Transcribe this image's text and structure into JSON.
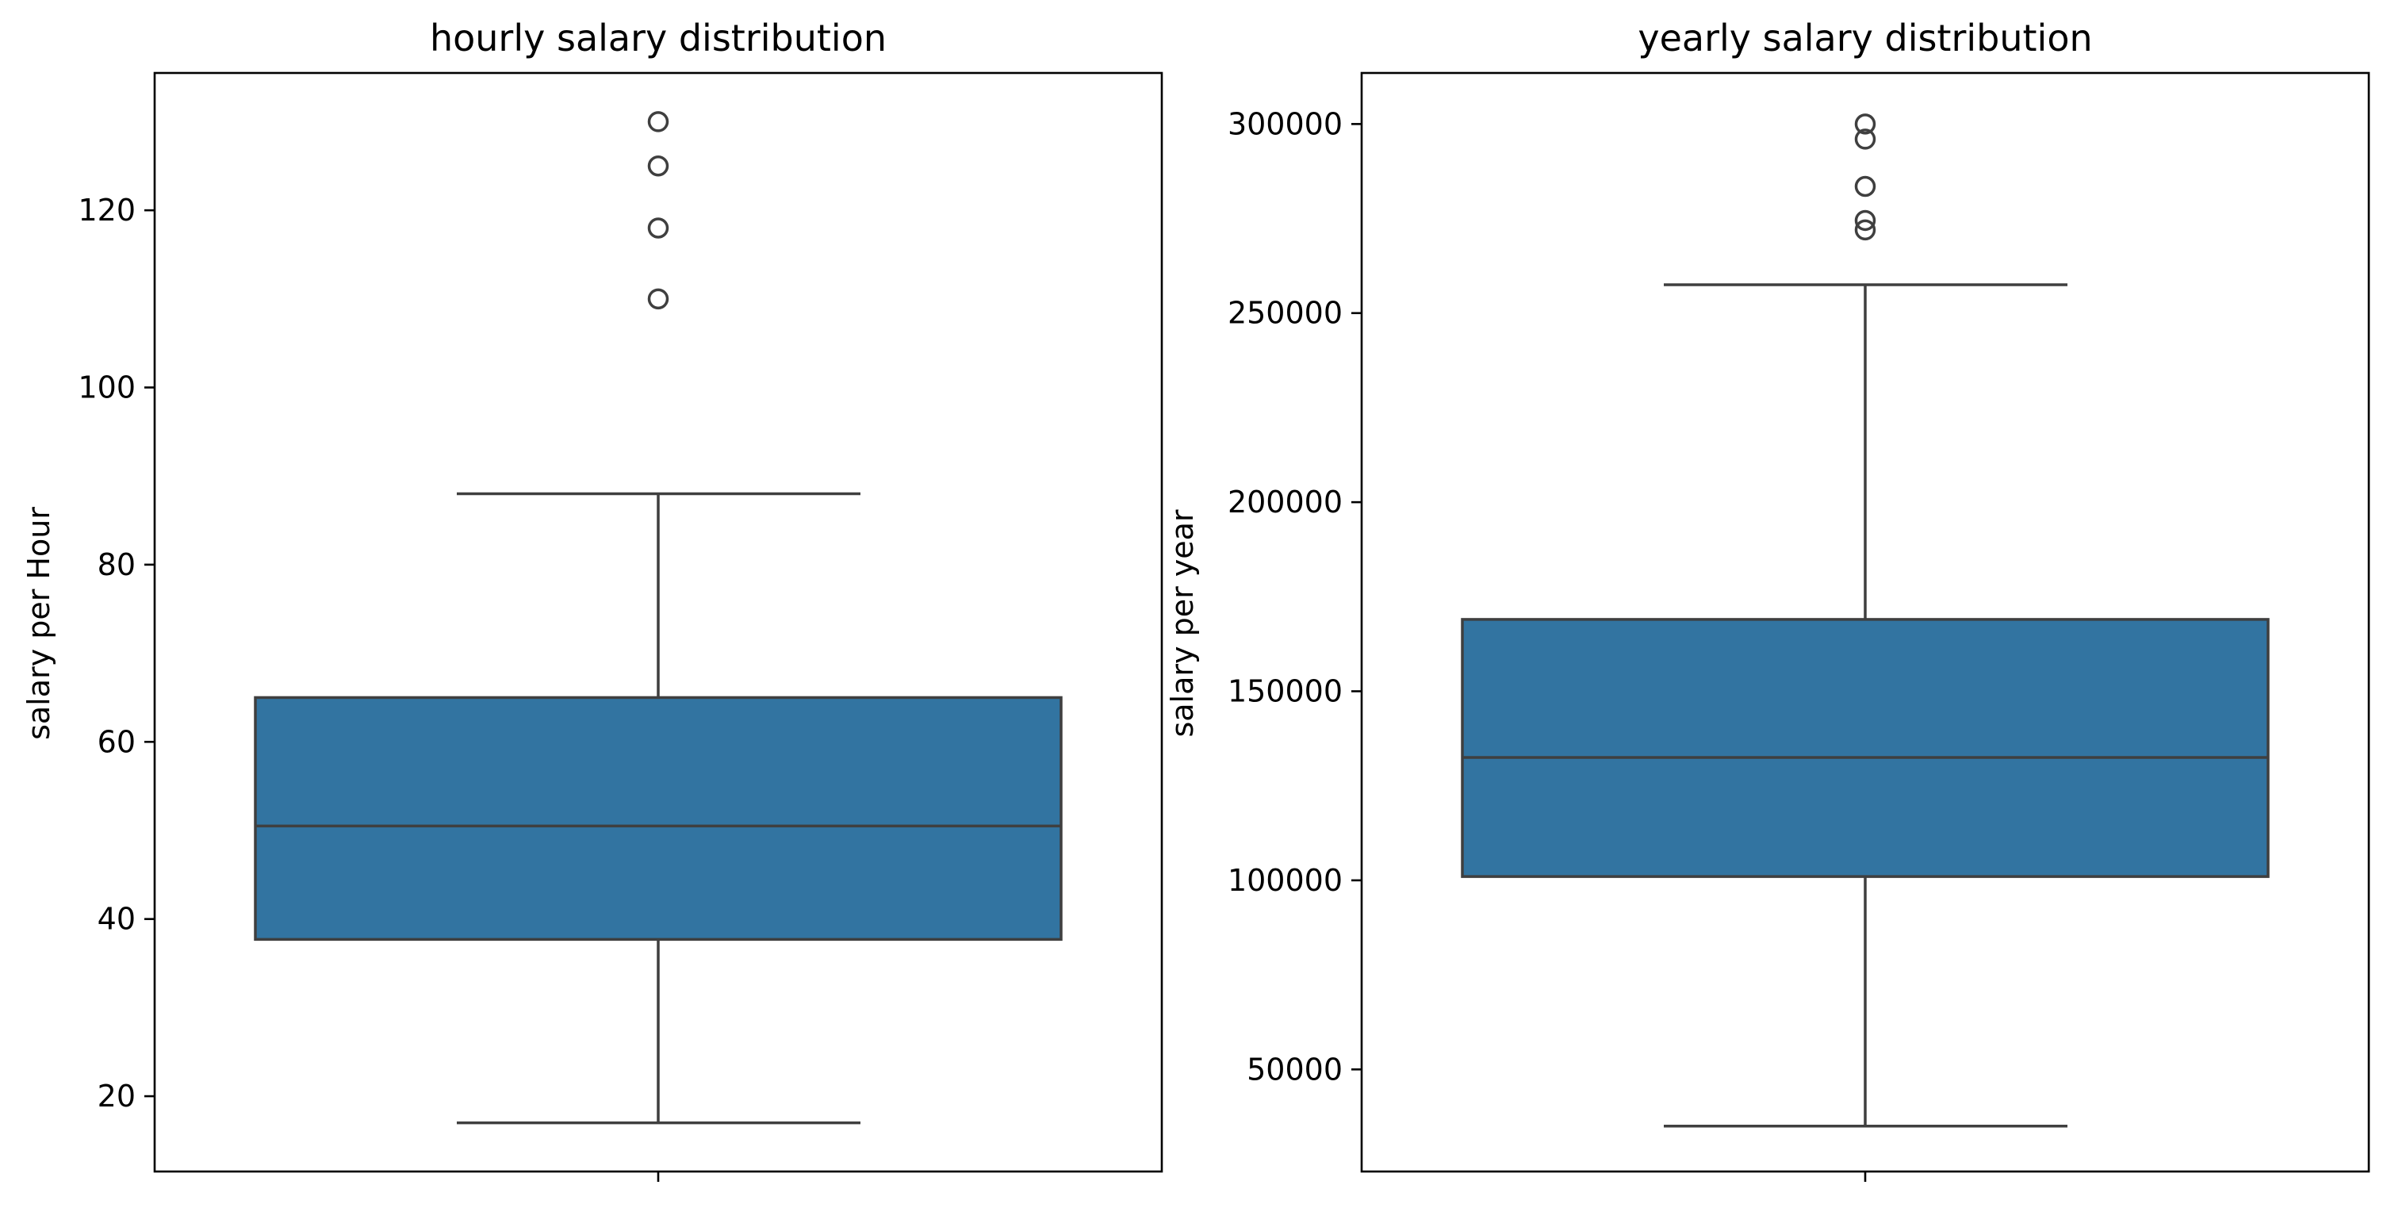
{
  "chart_data": [
    {
      "type": "box",
      "title": "hourly salary distribution",
      "xlabel": "",
      "ylabel": "salary per Hour",
      "ylim": [
        11.5,
        135.5
      ],
      "yticks": [
        20,
        40,
        60,
        80,
        100,
        120
      ],
      "box": {
        "whisker_low": 17,
        "q1": 37.7,
        "median": 50.5,
        "q3": 65,
        "whisker_high": 88,
        "outliers": [
          110,
          118,
          125,
          130
        ]
      },
      "colors": {
        "box_fill": "#3274a1",
        "line": "#3f3f3f"
      },
      "grid": false
    },
    {
      "type": "box",
      "title": "yearly salary distribution",
      "xlabel": "",
      "ylabel": "salary per year",
      "ylim": [
        23000,
        313500
      ],
      "yticks": [
        50000,
        100000,
        150000,
        200000,
        250000,
        300000
      ],
      "box": {
        "whisker_low": 35000,
        "q1": 101000,
        "median": 132500,
        "q3": 169000,
        "whisker_high": 257500,
        "outliers": [
          272000,
          274500,
          283500,
          296000,
          300000
        ]
      },
      "colors": {
        "box_fill": "#3274a1",
        "line": "#3f3f3f"
      },
      "grid": false
    }
  ]
}
